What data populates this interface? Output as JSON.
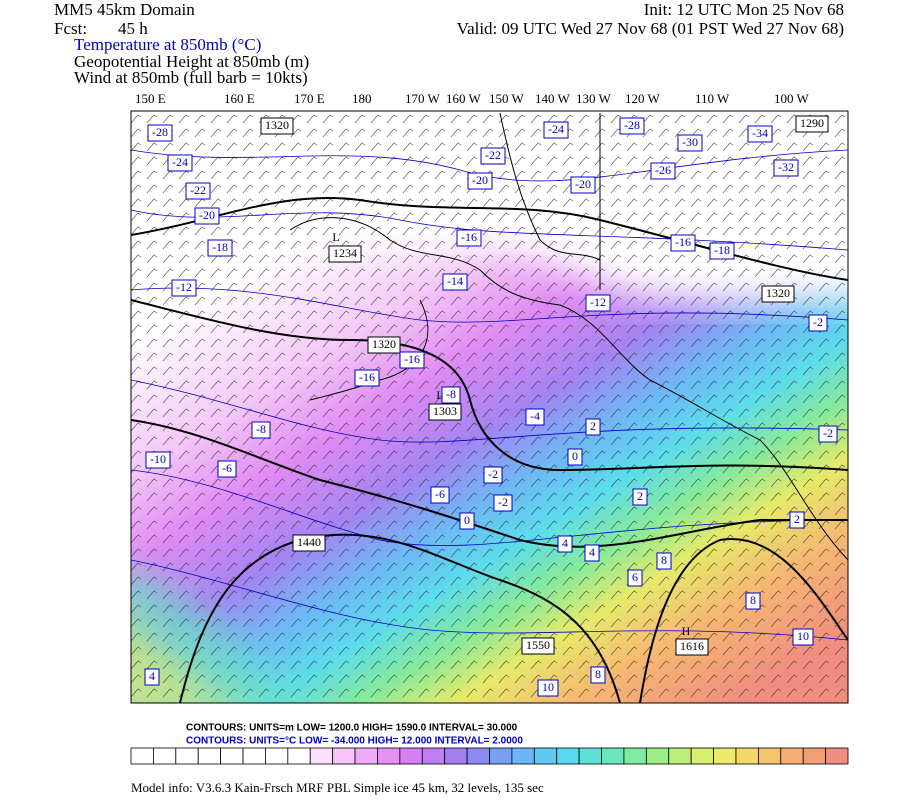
{
  "header": {
    "title": "MM5 45km Domain",
    "init": "Init: 12 UTC Mon 25 Nov 68",
    "fcst_label": "Fcst:",
    "fcst": "45 h",
    "valid": "Valid: 09 UTC Wed 27 Nov 68 (01 PST Wed 27 Nov 68)",
    "fields": [
      "Temperature at 850mb (°C)",
      "Geopotential Height at 850mb (m)",
      "Wind at 850mb (full barb = 10kts)"
    ]
  },
  "longitudes": [
    "150 E",
    "160 E",
    "170 E",
    "180",
    "170 W",
    "160 W",
    "150 W",
    "140 W",
    "130 W",
    "120 W",
    "110 W",
    "100 W"
  ],
  "height_labels": [
    "1320",
    "1290",
    "1234",
    "1320",
    "1320",
    "1303",
    "1440",
    "1550",
    "1616"
  ],
  "centers": [
    "L",
    "L",
    "H"
  ],
  "temperature_labels": [
    "-28",
    "-24",
    "-22",
    "-20",
    "-18",
    "-12",
    "-24",
    "-28",
    "-30",
    "-34",
    "-22",
    "-20",
    "-20",
    "-26",
    "-32",
    "-16",
    "-16",
    "-18",
    "-14",
    "-12",
    "-16",
    "-16",
    "-8",
    "-8",
    "-4",
    "2",
    "-2",
    "-2",
    "-10",
    "-6",
    "0",
    "-2",
    "-6",
    "-2",
    "2",
    "0",
    "2",
    "4",
    "4",
    "6",
    "8",
    "8",
    "10",
    "10",
    "8",
    "4"
  ],
  "contour_info": [
    "CONTOURS:  UNITS=m   LOW=   1200.0      HIGH=   1590.0      INTERVAL=    30.000",
    "CONTOURS:  UNITS=°C  LOW=  -34.000      HIGH=   12.000      INTERVAL=    2.0000"
  ],
  "colorbar": [
    "#ffffff",
    "#ffffff",
    "#ffffff",
    "#ffffff",
    "#ffffff",
    "#ffffff",
    "#ffffff",
    "#ffffff",
    "#fbe0fb",
    "#f5c4f8",
    "#eeaaf6",
    "#e690f4",
    "#d87ef4",
    "#c07ef4",
    "#a080f0",
    "#8a8cf2",
    "#7aa0f4",
    "#6ab6f6",
    "#5ccaf4",
    "#56d8ee",
    "#5ce0d8",
    "#6ae6bc",
    "#80ea9e",
    "#9cec88",
    "#bcee7a",
    "#d8ee6e",
    "#ecea68",
    "#f4d868",
    "#f6c46c",
    "#f6b072",
    "#f49e78",
    "#f08c80"
  ],
  "footer": "Model info: V3.6.3 Kain-Frsch MRF PBL    Simple ice    45 km,  32 levels,  135 sec"
}
